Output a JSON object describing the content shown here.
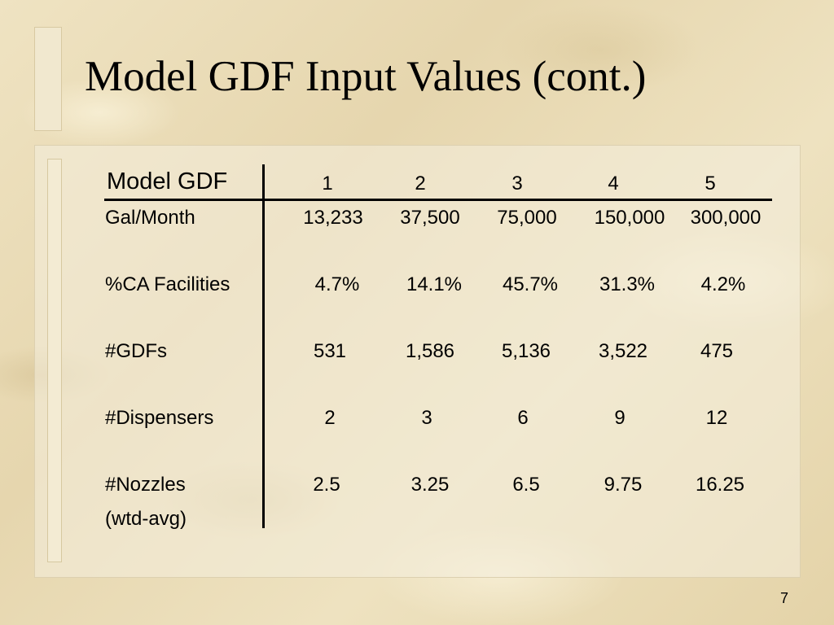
{
  "slide": {
    "title": "Model GDF Input Values (cont.)",
    "page_number": "7"
  },
  "table": {
    "header_label": "Model GDF",
    "columns": [
      "1",
      "2",
      "3",
      "4",
      "5"
    ],
    "rows": [
      {
        "label": "Gal/Month",
        "values": [
          "13,233",
          "37,500",
          "75,000",
          "150,000",
          "300,000"
        ]
      },
      {
        "label": "%CA Facilities",
        "values": [
          "4.7%",
          "14.1%",
          "45.7%",
          "31.3%",
          "4.2%"
        ]
      },
      {
        "label": "#GDFs",
        "values": [
          "531",
          "1,586",
          "5,136",
          "3,522",
          "475"
        ]
      },
      {
        "label": "#Dispensers",
        "values": [
          "2",
          "3",
          "6",
          "9",
          "12"
        ]
      },
      {
        "label": "#Nozzles",
        "label_line2": "(wtd-avg)",
        "values": [
          "2.5",
          "3.25",
          "6.5",
          "9.75",
          "16.25"
        ]
      }
    ]
  }
}
